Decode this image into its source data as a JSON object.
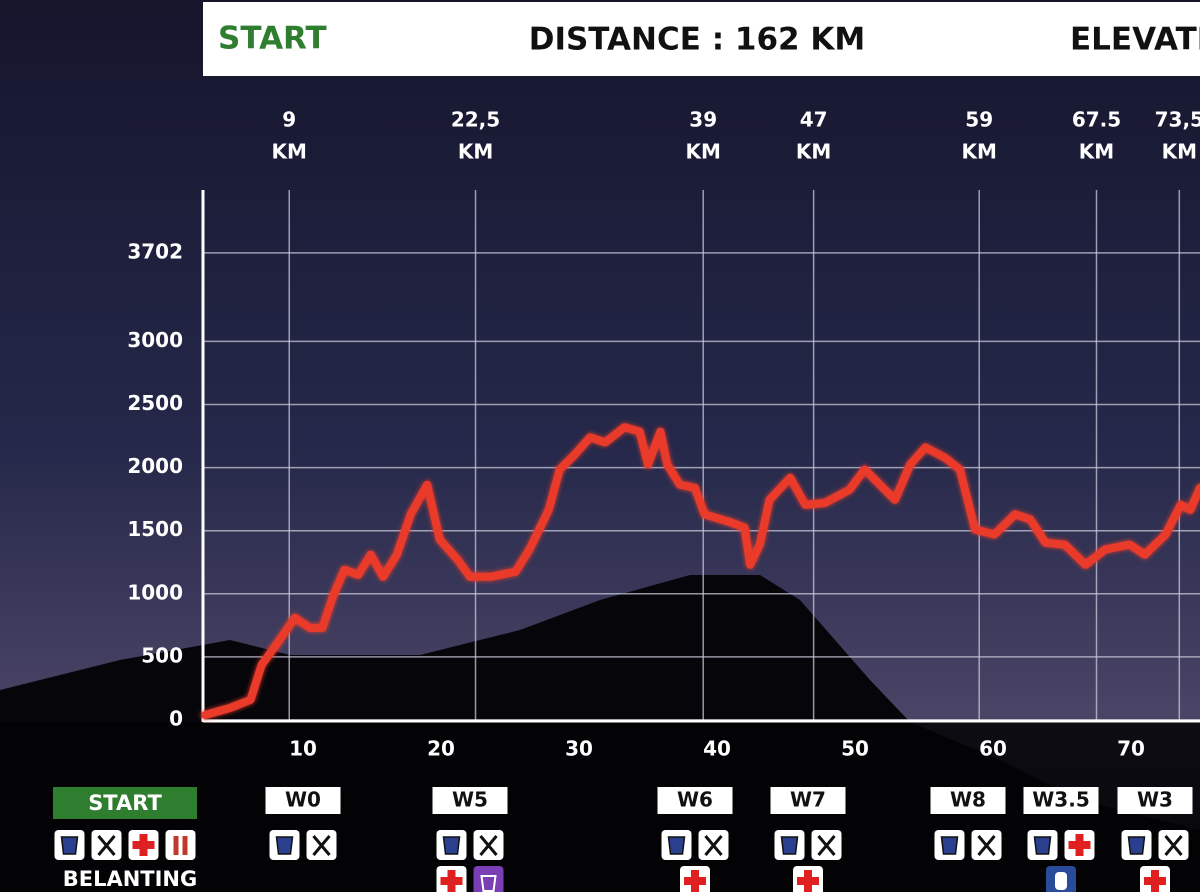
{
  "header": {
    "start": "START",
    "distance": "DISTANCE : 162 KM",
    "elevation": "ELEVATION"
  },
  "chart_data": {
    "type": "line",
    "color": "#ea3a2b",
    "x": [
      2.9,
      4.7,
      6.2,
      7.0,
      8.3,
      9.4,
      10.5,
      11.4,
      12.2,
      13.0,
      14.0,
      14.9,
      15.8,
      16.8,
      17.8,
      19.0,
      19.9,
      21.2,
      22.1,
      23.6,
      25.4,
      26.4,
      27.8,
      28.6,
      29.7,
      30.8,
      31.9,
      33.3,
      34.4,
      35.0,
      35.9,
      36.4,
      37.3,
      38.4,
      39.1,
      40.9,
      42.0,
      42.4,
      43.1,
      43.8,
      45.3,
      46.4,
      47.8,
      49.6,
      50.7,
      51.8,
      52.9,
      54.0,
      55.1,
      56.5,
      57.6,
      58.7,
      60.1,
      61.6,
      62.7,
      63.8,
      65.2,
      66.7,
      68.1,
      69.9,
      71.0,
      72.5,
      73.6,
      74.3,
      75.0
    ],
    "values": [
      40,
      95,
      160,
      437,
      635,
      810,
      730,
      730,
      990,
      1190,
      1150,
      1310,
      1135,
      1310,
      1630,
      1865,
      1430,
      1270,
      1135,
      1135,
      1175,
      1350,
      1665,
      1985,
      2105,
      2240,
      2200,
      2320,
      2285,
      2025,
      2285,
      2025,
      1865,
      1840,
      1630,
      1570,
      1525,
      1230,
      1390,
      1745,
      1920,
      1705,
      1720,
      1825,
      1985,
      1865,
      1745,
      2025,
      2160,
      2080,
      1985,
      1510,
      1470,
      1630,
      1590,
      1405,
      1390,
      1230,
      1350,
      1390,
      1310,
      1470,
      1705,
      1665,
      1840
    ],
    "xlim": [
      2.75,
      75
    ],
    "ylim": [
      0,
      4200
    ],
    "xticks": [
      10,
      20,
      30,
      40,
      50,
      60,
      70
    ],
    "yticks": [
      0,
      500,
      1000,
      1500,
      2000,
      2500,
      3000,
      3702
    ],
    "grid": true,
    "markers": [
      9,
      {
        "value": 22.5,
        "label": "22,5"
      },
      39,
      47,
      59,
      67.5,
      {
        "value": 73.5,
        "label": "73,5"
      }
    ],
    "marker_unit": "KM"
  },
  "checkpoints": [
    "START",
    "W0",
    "W5",
    "W6",
    "W7",
    "W8",
    "W3.5",
    "W3"
  ],
  "start_name": "BELANTING"
}
